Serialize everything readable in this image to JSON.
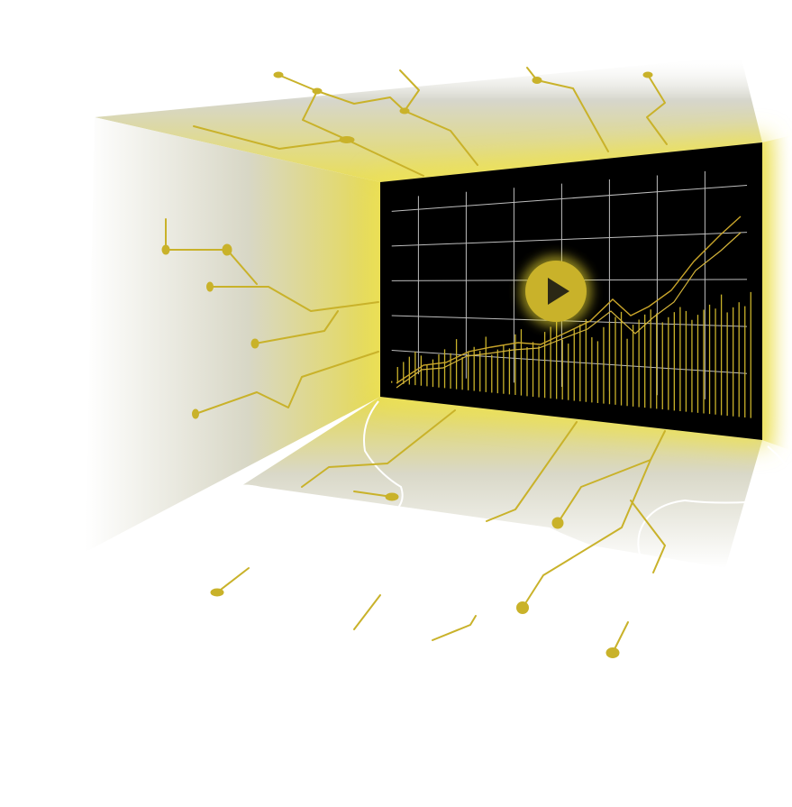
{
  "scene": {
    "description_role": "illustration",
    "colors": {
      "accent": "#c9b22a",
      "glow": "#e8dc5a",
      "screen": "#000000",
      "grid": "#bdbdbd",
      "wall_shade": "#bdbdad",
      "background": "#ffffff"
    },
    "screen": {
      "play_button": {
        "icon": "play-icon",
        "state": "paused"
      },
      "chart_kind": "line-and-bar stock chart (decorative, unlabeled)",
      "line_trend": "rising"
    }
  }
}
